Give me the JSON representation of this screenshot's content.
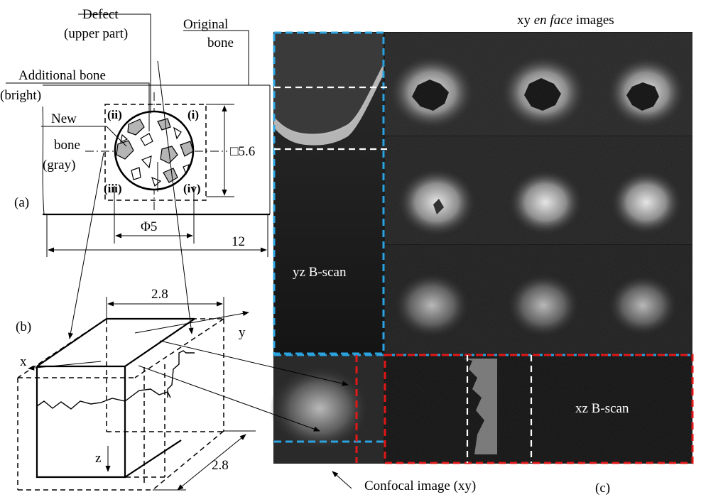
{
  "labels": {
    "defect": "Defect",
    "defect_sub": "(upper part)",
    "original": "Original",
    "original_sub": "bone",
    "additional": "Additional bone",
    "additional_sub": "(bright)",
    "new_bone_1": "New",
    "new_bone_2": "bone",
    "new_bone_3": "(gray)",
    "q_i": "(i)",
    "q_ii": "(ii)",
    "q_iii": "(iii)",
    "q_iv": "(iv)",
    "square_dim": "□5.6",
    "diameter_dim": "Φ5",
    "width_dim": "12",
    "panel_a": "(a)",
    "panel_b": "(b)",
    "panel_c": "(c)",
    "box_dim_top": "2.8",
    "box_dim_side": "2.8",
    "axis_x": "x",
    "axis_y": "y",
    "axis_z": "z",
    "enface_pre": "xy ",
    "enface_italic": "en face",
    "enface_post": " images",
    "yz_bscan": "yz B-scan",
    "xz_bscan": "xz B-scan",
    "confocal": "Confocal image (xy)"
  },
  "colors": {
    "scan_blue": "#2aa3e0",
    "scan_red": "#e01818",
    "new_bone_gray": "#b5b5b5"
  }
}
